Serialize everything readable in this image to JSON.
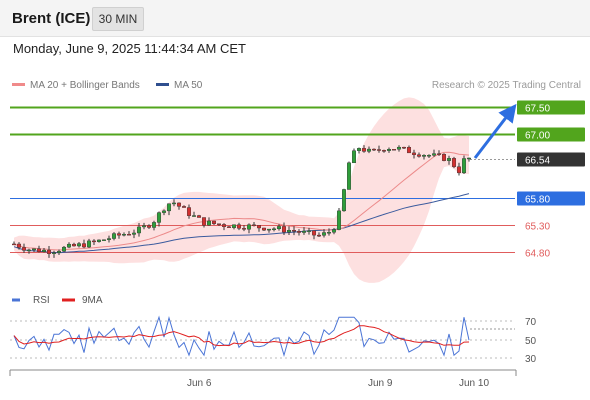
{
  "header": {
    "instrument": "Brent (ICE)",
    "timeframe": "30 MIN"
  },
  "datetime": "Monday, June 9, 2025 11:44:34 AM CET",
  "legend": {
    "ma20_label": "MA 20 + Bollinger Bands",
    "ma50_label": "MA 50",
    "credit": "Research © 2025 Trading Central"
  },
  "colors": {
    "resistance": "#52a51d",
    "pivot": "#2d6ee0",
    "support": "#e05c5c",
    "last": "#333333",
    "up": "#2e9e3a",
    "down": "#d32f2f",
    "band": "#fde0e0",
    "ma20": "#ec8a8a",
    "ma50": "#3b5b9e",
    "rsi": "#4a74d6",
    "rsi_ma": "#e02020"
  },
  "levels": [
    {
      "value": "67.50",
      "type": "resistance"
    },
    {
      "value": "67.00",
      "type": "resistance"
    },
    {
      "value": "66.54",
      "type": "last"
    },
    {
      "value": "65.80",
      "type": "pivot"
    },
    {
      "value": "65.30",
      "type": "support"
    },
    {
      "value": "64.80",
      "type": "support"
    }
  ],
  "rsi_panel": {
    "rsi_label": "RSI",
    "ma_label": "9MA",
    "ticks": [
      "70",
      "50",
      "30"
    ]
  },
  "x_axis": {
    "labels": [
      "Jun 6",
      "Jun 9",
      "Jun 10"
    ]
  }
}
